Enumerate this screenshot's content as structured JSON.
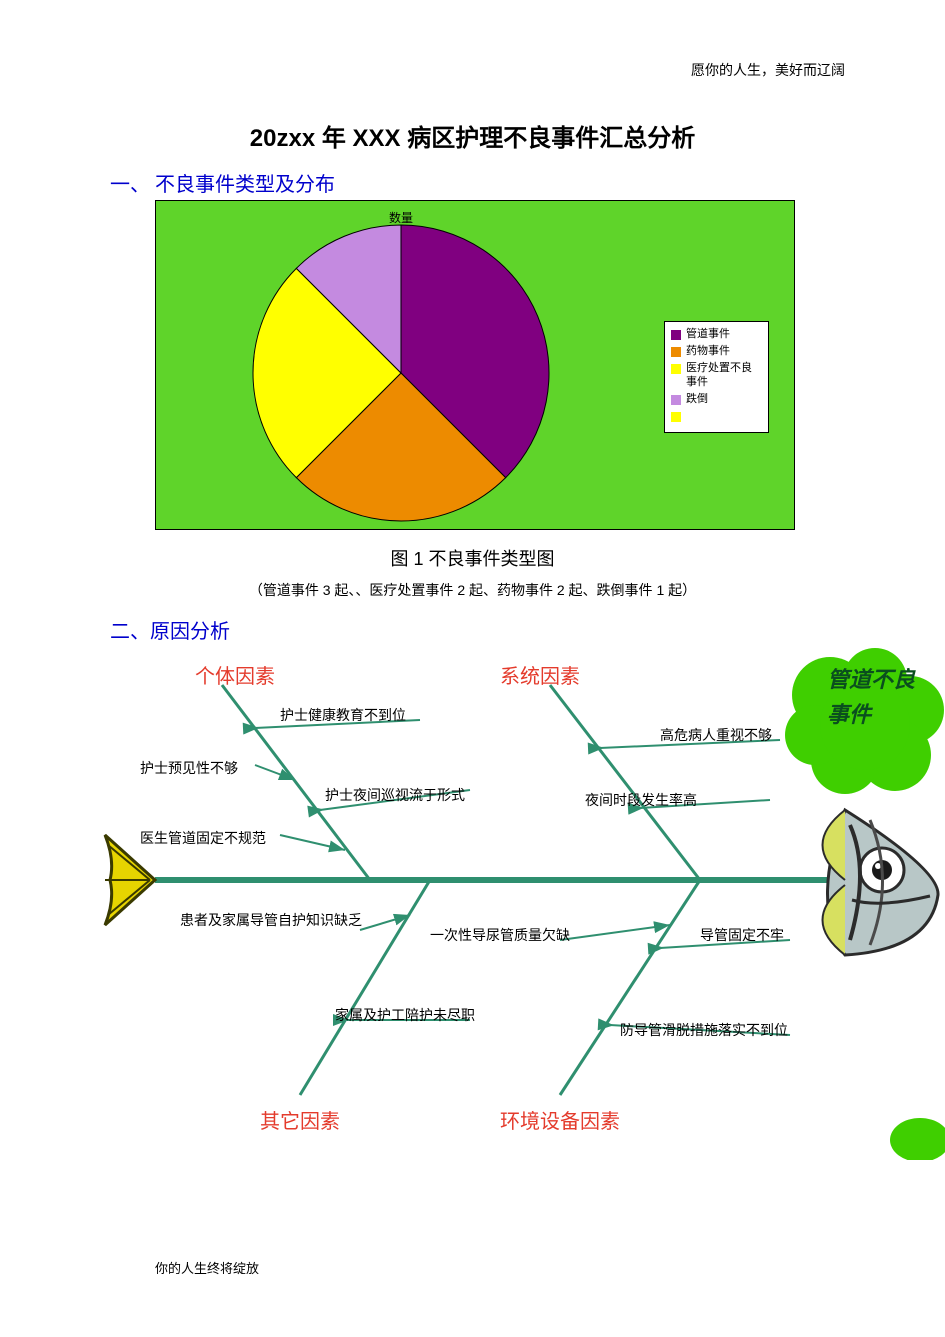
{
  "header_note": "愿你的人生，美好而辽阔",
  "footer_note": "你的人生终将绽放",
  "title": "20zxx 年 XXX 病区护理不良事件汇总分析",
  "section1": "一、  不良事件类型及分布",
  "section2": "二、原因分析",
  "pie": {
    "type": "pie",
    "title": "数量",
    "background_color": "#5fd42a",
    "slices": [
      {
        "label": "管道事件",
        "value": 3,
        "color": "#800080"
      },
      {
        "label": "药物事件",
        "value": 2,
        "color": "#ed8b00"
      },
      {
        "label": "医疗处置不良事件",
        "value": 2,
        "color": "#ffff00"
      },
      {
        "label": "跌倒",
        "value": 1,
        "color": "#c48ae0"
      }
    ],
    "legend_extra_color": "#ffff00",
    "caption": "图 1   不良事件类型图",
    "note": "（管道事件 3 起、、医疗处置事件 2 起、药物事件 2 起、跌倒事件 1 起）"
  },
  "fishbone": {
    "head_label": "管道不良事件",
    "spine_color": "#2f8f6f",
    "arrow_color": "#2f8f6f",
    "cloud_color": "#3fcf00",
    "categories": {
      "top_left": "个体因素",
      "top_right": "系统因素",
      "bottom_left": "其它因素",
      "bottom_right": "环境设备因素"
    },
    "causes": {
      "tl1": "护士健康教育不到位",
      "tl2": "护士预见性不够",
      "tl3": "护士夜间巡视流于形式",
      "tl4": "医生管道固定不规范",
      "tr1": "高危病人重视不够",
      "tr2": "夜间时段发生率高",
      "bl1": "患者及家属导管自护知识缺乏",
      "bl2": "家属及护工陪护未尽职",
      "br1": "一次性导尿管质量欠缺",
      "br2": "导管固定不牢",
      "br3": "防导管滑脱措施落实不到位"
    }
  }
}
